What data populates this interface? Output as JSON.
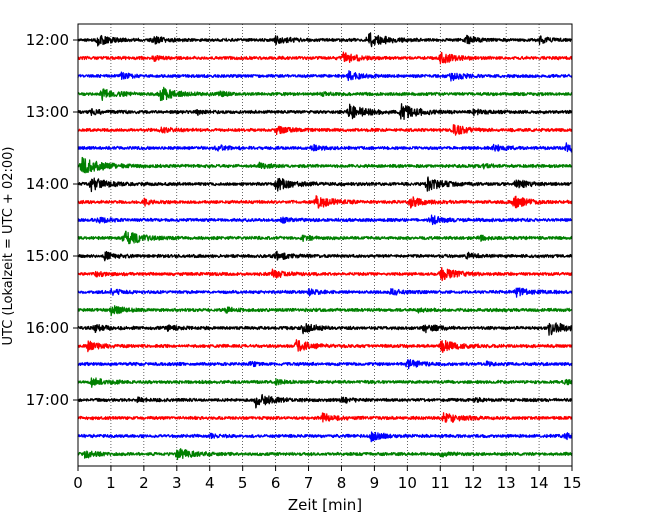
{
  "chart_data": {
    "type": "line",
    "title": "",
    "xlabel": "Zeit  [min]",
    "ylabel": "UTC (Lokalzeit = UTC + 02:00)",
    "xlim": [
      0,
      15
    ],
    "x_ticks": [
      0,
      1,
      2,
      3,
      4,
      5,
      6,
      7,
      8,
      9,
      10,
      11,
      12,
      13,
      14,
      15
    ],
    "x_tick_labels": [
      "0",
      "1",
      "2",
      "3",
      "4",
      "5",
      "6",
      "7",
      "8",
      "9",
      "10",
      "11",
      "12",
      "13",
      "14",
      "15"
    ],
    "y_tick_labels": [
      "12:00",
      "13:00",
      "14:00",
      "15:00",
      "16:00",
      "17:00"
    ],
    "grid": "vertical dotted",
    "trace_interval_minutes": 15,
    "color_cycle": [
      "#000000",
      "#ff0000",
      "#0000ff",
      "#008000"
    ],
    "traces": [
      {
        "start": "12:00",
        "color": "#000000",
        "events": [
          {
            "t": 0.6,
            "amp": 0.7
          },
          {
            "t": 2.3,
            "amp": 0.5
          },
          {
            "t": 6.0,
            "amp": 0.6
          },
          {
            "t": 8.8,
            "amp": 1.0
          },
          {
            "t": 11.8,
            "amp": 0.5
          },
          {
            "t": 14.0,
            "amp": 0.5
          }
        ]
      },
      {
        "start": "12:15",
        "color": "#ff0000",
        "events": [
          {
            "t": 2.3,
            "amp": 0.3
          },
          {
            "t": 8.0,
            "amp": 0.8
          },
          {
            "t": 11.0,
            "amp": 0.8
          }
        ]
      },
      {
        "start": "12:30",
        "color": "#0000ff",
        "events": [
          {
            "t": 1.3,
            "amp": 0.4
          },
          {
            "t": 8.2,
            "amp": 0.6
          },
          {
            "t": 11.3,
            "amp": 0.6
          }
        ]
      },
      {
        "start": "12:45",
        "color": "#008000",
        "events": [
          {
            "t": 0.7,
            "amp": 0.8
          },
          {
            "t": 2.5,
            "amp": 0.9
          },
          {
            "t": 4.3,
            "amp": 0.3
          },
          {
            "t": 7.3,
            "amp": 0.3
          }
        ]
      },
      {
        "start": "13:00",
        "color": "#000000",
        "events": [
          {
            "t": 0.4,
            "amp": 0.4
          },
          {
            "t": 3.6,
            "amp": 0.3
          },
          {
            "t": 8.2,
            "amp": 1.0
          },
          {
            "t": 9.8,
            "amp": 1.0
          },
          {
            "t": 12.0,
            "amp": 0.4
          }
        ]
      },
      {
        "start": "13:15",
        "color": "#ff0000",
        "events": [
          {
            "t": 2.5,
            "amp": 0.5
          },
          {
            "t": 6.0,
            "amp": 0.6
          },
          {
            "t": 11.4,
            "amp": 0.7
          }
        ]
      },
      {
        "start": "13:30",
        "color": "#0000ff",
        "events": [
          {
            "t": 4.2,
            "amp": 0.4
          },
          {
            "t": 7.1,
            "amp": 0.4
          },
          {
            "t": 12.6,
            "amp": 0.5
          },
          {
            "t": 14.8,
            "amp": 0.6
          }
        ]
      },
      {
        "start": "13:45",
        "color": "#008000",
        "events": [
          {
            "t": 0.1,
            "amp": 1.2
          },
          {
            "t": 5.5,
            "amp": 0.4
          },
          {
            "t": 12.3,
            "amp": 0.3
          }
        ]
      },
      {
        "start": "14:00",
        "color": "#000000",
        "events": [
          {
            "t": 0.4,
            "amp": 0.9
          },
          {
            "t": 6.0,
            "amp": 0.9
          },
          {
            "t": 10.6,
            "amp": 0.9
          },
          {
            "t": 13.3,
            "amp": 0.6
          }
        ]
      },
      {
        "start": "14:15",
        "color": "#ff0000",
        "events": [
          {
            "t": 2.0,
            "amp": 0.4
          },
          {
            "t": 7.2,
            "amp": 0.9
          },
          {
            "t": 10.1,
            "amp": 0.7
          },
          {
            "t": 13.2,
            "amp": 0.8
          }
        ]
      },
      {
        "start": "14:30",
        "color": "#0000ff",
        "events": [
          {
            "t": 0.6,
            "amp": 0.4
          },
          {
            "t": 6.2,
            "amp": 0.4
          },
          {
            "t": 10.7,
            "amp": 0.6
          }
        ]
      },
      {
        "start": "14:45",
        "color": "#008000",
        "events": [
          {
            "t": 1.4,
            "amp": 1.0
          },
          {
            "t": 6.8,
            "amp": 0.4
          },
          {
            "t": 12.2,
            "amp": 0.3
          }
        ]
      },
      {
        "start": "15:00",
        "color": "#000000",
        "events": [
          {
            "t": 0.8,
            "amp": 0.6
          },
          {
            "t": 6.0,
            "amp": 0.6
          },
          {
            "t": 11.8,
            "amp": 0.4
          }
        ]
      },
      {
        "start": "15:15",
        "color": "#ff0000",
        "events": [
          {
            "t": 0.5,
            "amp": 0.4
          },
          {
            "t": 5.9,
            "amp": 0.6
          },
          {
            "t": 11.0,
            "amp": 0.9
          }
        ]
      },
      {
        "start": "15:30",
        "color": "#0000ff",
        "events": [
          {
            "t": 1.0,
            "amp": 0.4
          },
          {
            "t": 7.0,
            "amp": 0.4
          },
          {
            "t": 9.5,
            "amp": 0.4
          },
          {
            "t": 13.3,
            "amp": 0.6
          }
        ]
      },
      {
        "start": "15:45",
        "color": "#008000",
        "events": [
          {
            "t": 1.0,
            "amp": 0.6
          },
          {
            "t": 4.5,
            "amp": 0.3
          },
          {
            "t": 10.3,
            "amp": 0.3
          }
        ]
      },
      {
        "start": "16:00",
        "color": "#000000",
        "events": [
          {
            "t": 0.5,
            "amp": 0.5
          },
          {
            "t": 2.7,
            "amp": 0.4
          },
          {
            "t": 6.8,
            "amp": 0.7
          },
          {
            "t": 10.5,
            "amp": 0.6
          },
          {
            "t": 14.3,
            "amp": 0.9
          }
        ]
      },
      {
        "start": "16:15",
        "color": "#ff0000",
        "events": [
          {
            "t": 0.3,
            "amp": 0.6
          },
          {
            "t": 6.6,
            "amp": 0.8
          },
          {
            "t": 11.0,
            "amp": 0.9
          }
        ]
      },
      {
        "start": "16:30",
        "color": "#0000ff",
        "events": [
          {
            "t": 5.2,
            "amp": 0.3
          },
          {
            "t": 10.0,
            "amp": 0.6
          },
          {
            "t": 12.4,
            "amp": 0.3
          }
        ]
      },
      {
        "start": "16:45",
        "color": "#008000",
        "events": [
          {
            "t": 0.4,
            "amp": 0.7
          },
          {
            "t": 6.0,
            "amp": 0.3
          },
          {
            "t": 14.8,
            "amp": 0.3
          }
        ]
      },
      {
        "start": "17:00",
        "color": "#000000",
        "events": [
          {
            "t": 1.8,
            "amp": 0.3
          },
          {
            "t": 5.4,
            "amp": 0.9
          },
          {
            "t": 8.0,
            "amp": 0.4
          },
          {
            "t": 12.0,
            "amp": 0.3
          }
        ]
      },
      {
        "start": "17:15",
        "color": "#ff0000",
        "events": [
          {
            "t": 7.4,
            "amp": 0.6
          },
          {
            "t": 11.1,
            "amp": 0.8
          }
        ]
      },
      {
        "start": "17:30",
        "color": "#0000ff",
        "events": [
          {
            "t": 4.0,
            "amp": 0.3
          },
          {
            "t": 8.9,
            "amp": 0.6
          },
          {
            "t": 14.8,
            "amp": 0.6
          }
        ]
      },
      {
        "start": "17:45",
        "color": "#008000",
        "events": [
          {
            "t": 0.2,
            "amp": 0.5
          },
          {
            "t": 3.0,
            "amp": 0.8
          },
          {
            "t": 11.0,
            "amp": 0.3
          }
        ]
      }
    ]
  }
}
